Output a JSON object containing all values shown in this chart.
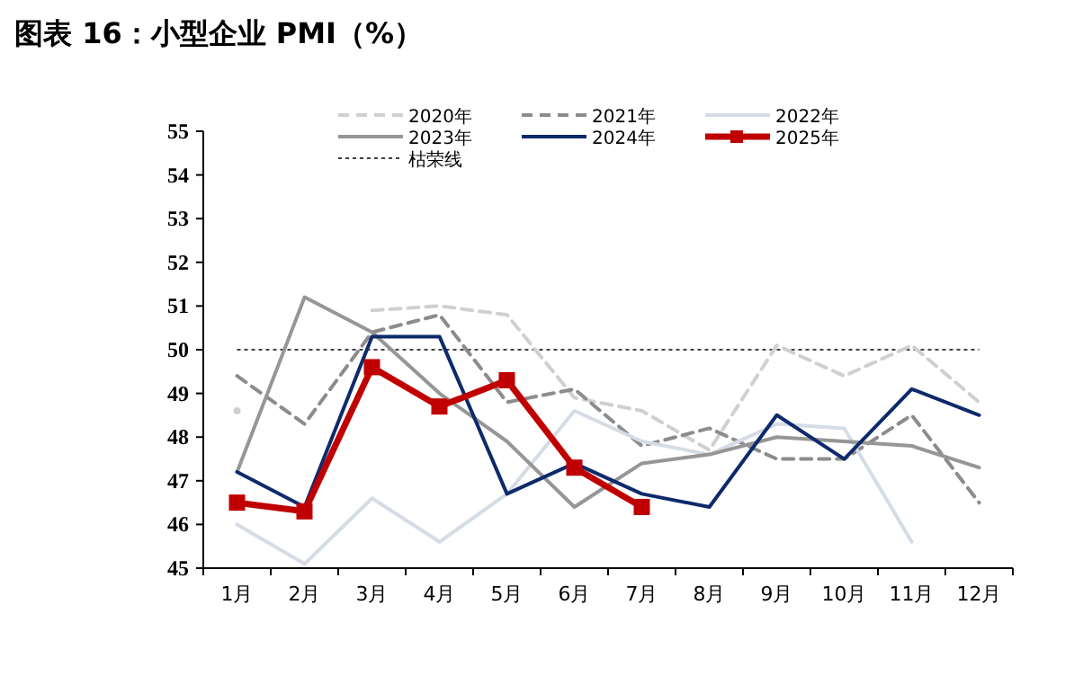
{
  "chart_data": {
    "type": "line",
    "title": "图表 16：小型企业 PMI（%）",
    "categories": [
      "1月",
      "2月",
      "3月",
      "4月",
      "5月",
      "6月",
      "7月",
      "8月",
      "9月",
      "10月",
      "11月",
      "12月"
    ],
    "series": [
      {
        "name": "2020年",
        "color": "#d0d0d0",
        "line_style": "dashed",
        "values": [
          48.6,
          null,
          50.9,
          51.0,
          50.8,
          48.9,
          48.6,
          47.7,
          50.1,
          49.4,
          50.1,
          48.8
        ]
      },
      {
        "name": "2021年",
        "color": "#8c8c8c",
        "line_style": "dashed",
        "values": [
          49.4,
          48.3,
          50.4,
          50.8,
          48.8,
          49.1,
          47.8,
          48.2,
          47.5,
          47.5,
          48.5,
          46.5
        ]
      },
      {
        "name": "2022年",
        "color": "#d5dce6",
        "line_style": "solid",
        "values": [
          46.0,
          45.1,
          46.6,
          45.6,
          46.7,
          48.6,
          47.9,
          47.6,
          48.3,
          48.2,
          45.6,
          null
        ]
      },
      {
        "name": "2023年",
        "color": "#969696",
        "line_style": "solid",
        "values": [
          47.2,
          51.2,
          50.4,
          49.0,
          47.9,
          46.4,
          47.4,
          47.6,
          48.0,
          47.9,
          47.8,
          47.3
        ]
      },
      {
        "name": "2024年",
        "color": "#0d2a6b",
        "line_style": "solid",
        "values": [
          47.2,
          46.4,
          50.3,
          50.3,
          46.7,
          47.4,
          46.7,
          46.4,
          48.5,
          47.5,
          49.1,
          48.5
        ]
      },
      {
        "name": "2025年",
        "color": "#c00000",
        "line_style": "solid",
        "marker": "square",
        "values": [
          46.5,
          46.3,
          49.6,
          48.7,
          49.3,
          47.3,
          46.4,
          null,
          null,
          null,
          null,
          null
        ]
      }
    ],
    "ref_lines": [
      {
        "axis": "y",
        "value": 50,
        "label": "枯荣线",
        "color": "#404040",
        "line_style": "dotted"
      }
    ],
    "ylim": [
      45,
      55
    ],
    "yticks": [
      45,
      46,
      47,
      48,
      49,
      50,
      51,
      52,
      53,
      54,
      55
    ],
    "grid": false,
    "legend": "top"
  }
}
